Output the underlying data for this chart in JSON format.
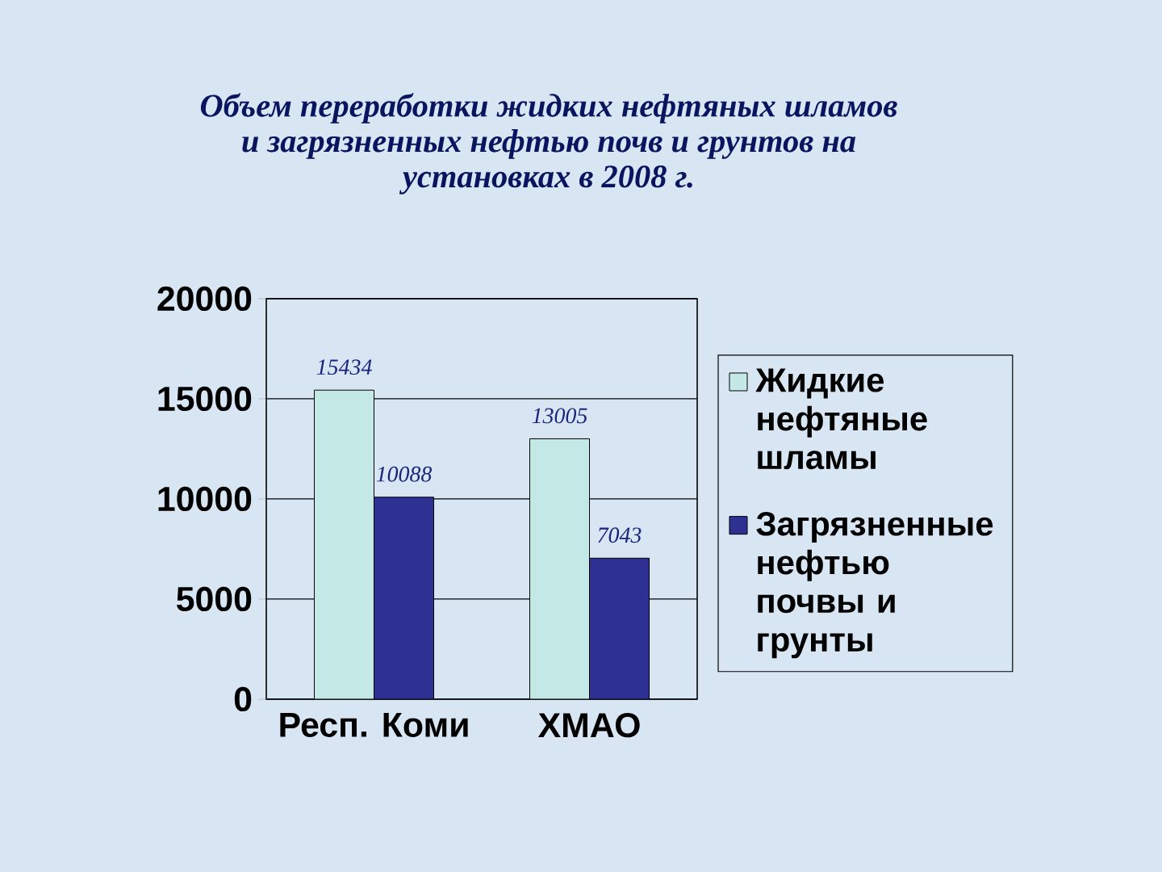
{
  "chart_data": {
    "type": "bar",
    "title": "Объем переработки жидких нефтяных шламов и загрязненных нефтью почв и грунтов на установках в 2008 г.",
    "categories": [
      "Респ. Коми",
      "ХМАО"
    ],
    "series": [
      {
        "name": "Жидкие нефтяные шламы",
        "color": "#c4e8e6",
        "values": [
          15434,
          13005
        ]
      },
      {
        "name": "Загрязненные нефтью почвы и грунты",
        "color": "#2e3192",
        "values": [
          10088,
          7043
        ]
      }
    ],
    "ylim": [
      0,
      20000
    ],
    "yticks": [
      0,
      5000,
      10000,
      15000,
      20000
    ],
    "grid": "y",
    "legend": "right",
    "data_labels": true
  }
}
